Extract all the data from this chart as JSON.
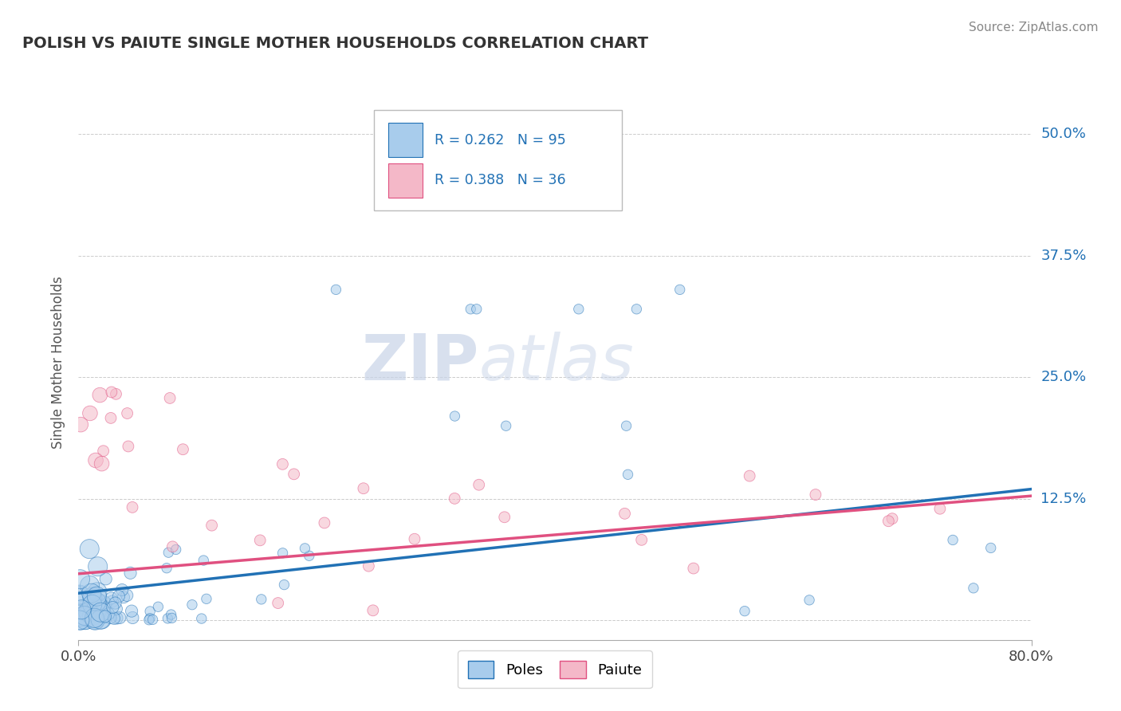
{
  "title": "POLISH VS PAIUTE SINGLE MOTHER HOUSEHOLDS CORRELATION CHART",
  "source": "Source: ZipAtlas.com",
  "ylabel": "Single Mother Households",
  "xlim": [
    0.0,
    0.8
  ],
  "ylim": [
    -0.02,
    0.55
  ],
  "y_ticks": [
    0.125,
    0.25,
    0.375,
    0.5
  ],
  "y_tick_labels": [
    "12.5%",
    "25.0%",
    "37.5%",
    "50.0%"
  ],
  "poles_R": "0.262",
  "poles_N": "95",
  "paiute_R": "0.388",
  "paiute_N": "36",
  "poles_color": "#a8ccec",
  "paiute_color": "#f4b8c8",
  "poles_line_color": "#2171b5",
  "paiute_line_color": "#e05080",
  "background_color": "#ffffff",
  "grid_color": "#cccccc",
  "watermark_zip": "ZIP",
  "watermark_atlas": "atlas",
  "poles_line_start_y": 0.028,
  "poles_line_end_y": 0.135,
  "paiute_line_start_y": 0.048,
  "paiute_line_end_y": 0.128
}
